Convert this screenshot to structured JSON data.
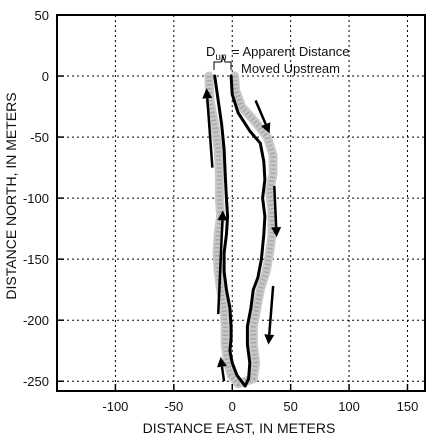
{
  "chart_data": {
    "type": "line",
    "title": "",
    "xlabel": "DISTANCE EAST, IN METERS",
    "ylabel": "DISTANCE NORTH, IN METERS",
    "xlim": [
      -150,
      165
    ],
    "ylim": [
      -258,
      50
    ],
    "x_ticks": [
      -100,
      -50,
      0,
      50,
      100,
      150
    ],
    "y_ticks": [
      50,
      0,
      -50,
      -100,
      -150,
      -200,
      -250
    ],
    "grid": "dashed",
    "annotation": {
      "symbol": "D",
      "subscript": "up",
      "text_line1": "= Apparent Distance",
      "text_line2": "Moved Upstream"
    },
    "series": [
      {
        "style": "black",
        "points": [
          [
            -15,
            0
          ],
          [
            -12,
            -20
          ],
          [
            -9,
            -40
          ],
          [
            -7,
            -60
          ],
          [
            -6,
            -80
          ],
          [
            -5,
            -100
          ],
          [
            -4,
            -115
          ],
          [
            -5,
            -130
          ],
          [
            -7,
            -145
          ],
          [
            -7,
            -160
          ],
          [
            -5,
            -175
          ],
          [
            -2,
            -190
          ],
          [
            -1,
            -205
          ],
          [
            -1,
            -215
          ],
          [
            -2,
            -225
          ],
          [
            0,
            -235
          ],
          [
            4,
            -245
          ],
          [
            11,
            -254
          ],
          [
            14,
            -248
          ],
          [
            15,
            -235
          ],
          [
            13,
            -220
          ],
          [
            13,
            -205
          ],
          [
            16,
            -190
          ],
          [
            18,
            -175
          ],
          [
            22,
            -165
          ],
          [
            25,
            -150
          ],
          [
            27,
            -130
          ],
          [
            28,
            -115
          ],
          [
            26,
            -100
          ],
          [
            28,
            -85
          ],
          [
            27,
            -70
          ],
          [
            24,
            -55
          ],
          [
            15,
            -45
          ],
          [
            5,
            -30
          ],
          [
            0,
            -15
          ],
          [
            -1,
            0
          ]
        ]
      },
      {
        "style": "gray",
        "points": [
          [
            -20,
            0
          ],
          [
            -19,
            -20
          ],
          [
            -15,
            -40
          ],
          [
            -12,
            -60
          ],
          [
            -11,
            -80
          ],
          [
            -11,
            -100
          ],
          [
            -10,
            -115
          ],
          [
            -12,
            -130
          ],
          [
            -13,
            -145
          ],
          [
            -12,
            -160
          ],
          [
            -10,
            -175
          ],
          [
            -7,
            -190
          ],
          [
            -6,
            -205
          ],
          [
            -6,
            -220
          ],
          [
            -4,
            -235
          ],
          [
            -1,
            -245
          ],
          [
            5,
            -252
          ],
          [
            18,
            -248
          ],
          [
            20,
            -235
          ],
          [
            18,
            -220
          ],
          [
            18,
            -205
          ],
          [
            21,
            -190
          ],
          [
            24,
            -175
          ],
          [
            29,
            -160
          ],
          [
            32,
            -145
          ],
          [
            34,
            -130
          ],
          [
            34,
            -110
          ],
          [
            32,
            -95
          ],
          [
            35,
            -80
          ],
          [
            35,
            -65
          ],
          [
            30,
            -50
          ],
          [
            20,
            -38
          ],
          [
            8,
            -25
          ],
          [
            3,
            -12
          ],
          [
            2,
            0
          ]
        ]
      }
    ],
    "flow_arrows": [
      {
        "from": [
          -17,
          -75
        ],
        "to": [
          -22,
          -10
        ]
      },
      {
        "from": [
          -12,
          -195
        ],
        "to": [
          -8,
          -110
        ]
      },
      {
        "from": [
          -7,
          -250
        ],
        "to": [
          -10,
          -230
        ]
      },
      {
        "from": [
          20,
          -20
        ],
        "to": [
          32,
          -47
        ]
      },
      {
        "from": [
          36,
          -90
        ],
        "to": [
          38,
          -132
        ]
      },
      {
        "from": [
          35,
          -172
        ],
        "to": [
          31,
          -220
        ]
      }
    ]
  }
}
